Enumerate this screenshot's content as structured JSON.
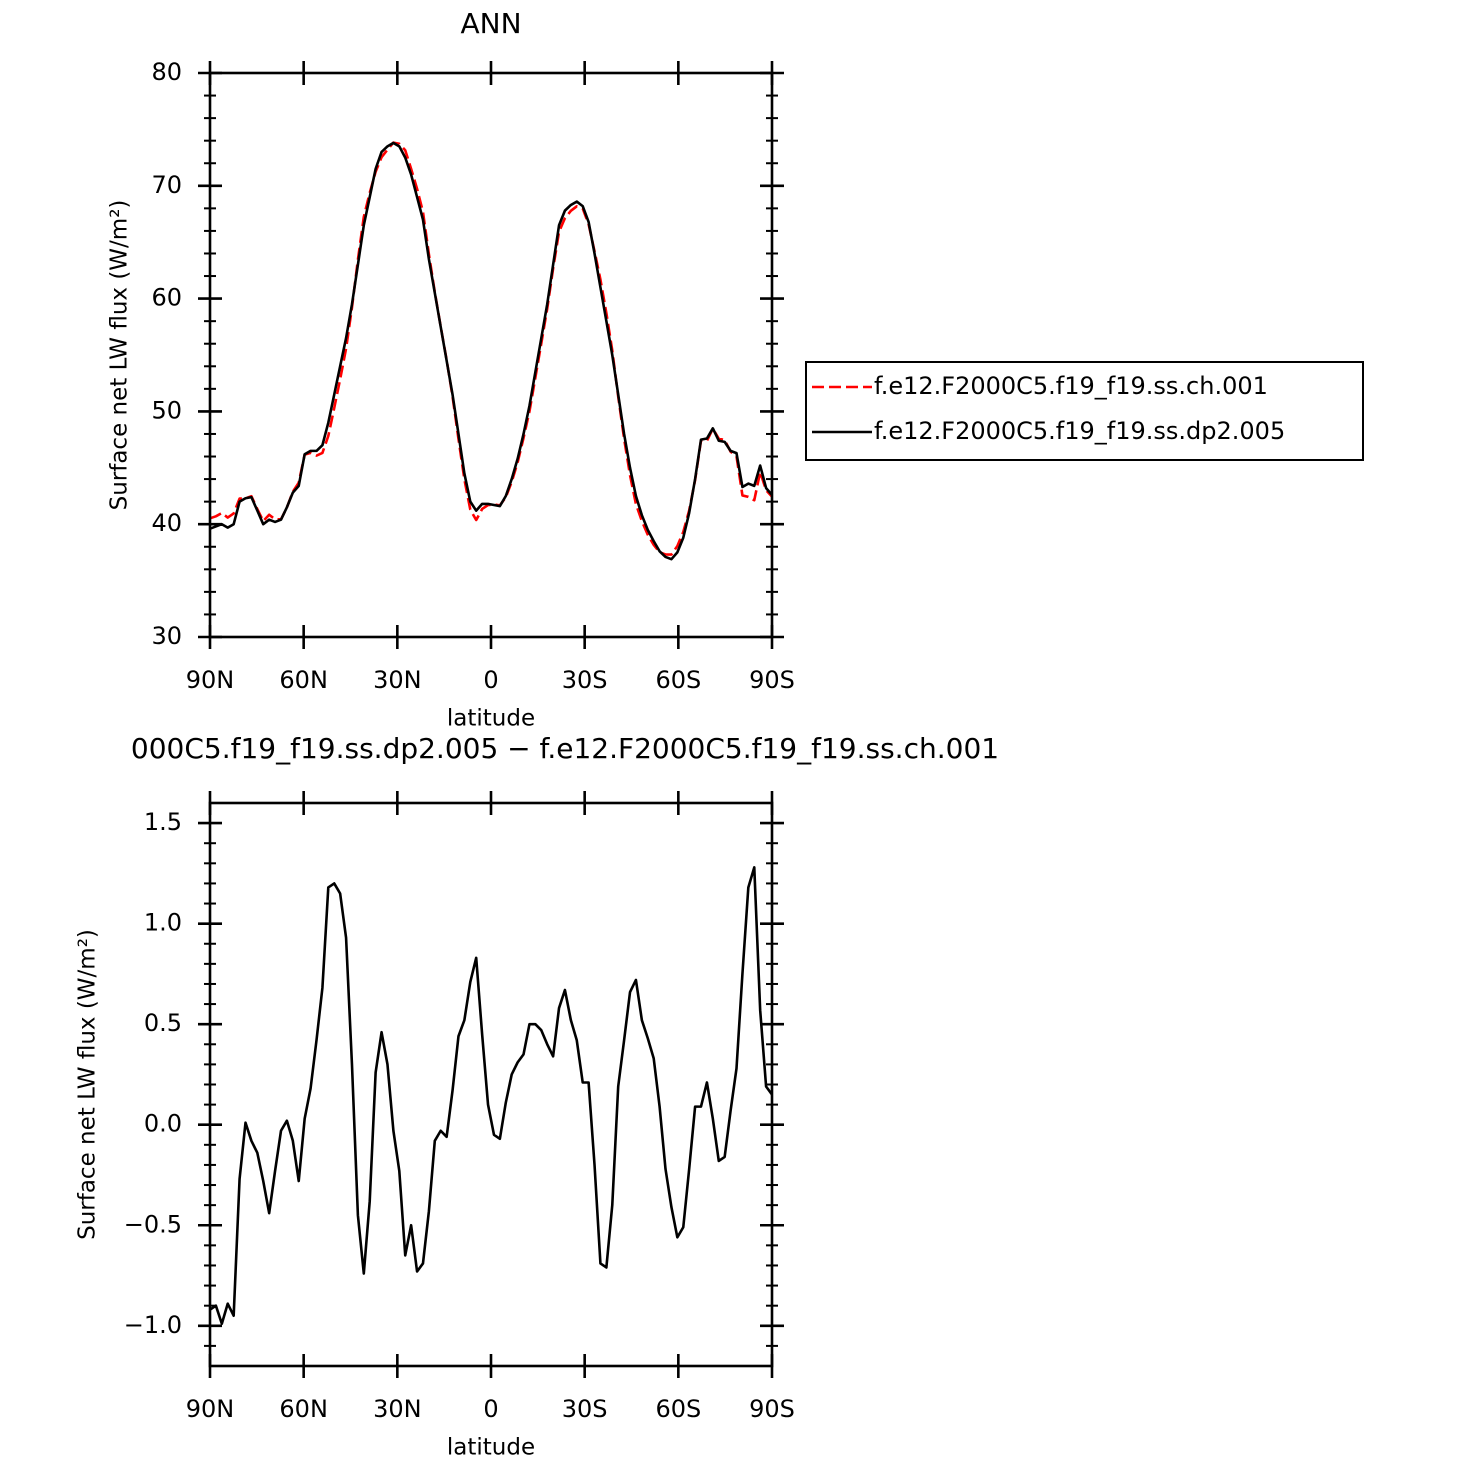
{
  "chart_data": [
    {
      "type": "line",
      "title": "ANN",
      "xlabel": "latitude",
      "ylabel": "Surface net LW flux (W/m²)",
      "x": [
        90,
        88.11,
        86.21,
        84.32,
        82.42,
        80.53,
        78.63,
        76.74,
        74.84,
        72.95,
        71.05,
        69.16,
        67.26,
        65.37,
        63.47,
        61.58,
        59.68,
        57.79,
        55.89,
        54,
        52.11,
        50.21,
        48.32,
        46.42,
        44.53,
        42.63,
        40.74,
        38.84,
        36.95,
        35.05,
        33.16,
        31.26,
        29.37,
        27.47,
        25.58,
        23.68,
        21.79,
        19.89,
        18,
        16.11,
        14.21,
        12.32,
        10.42,
        8.53,
        6.63,
        4.74,
        2.84,
        0.95,
        -0.95,
        -2.84,
        -4.74,
        -6.63,
        -8.53,
        -10.42,
        -12.32,
        -14.21,
        -16.11,
        -18,
        -19.89,
        -21.79,
        -23.68,
        -25.58,
        -27.47,
        -29.37,
        -31.26,
        -33.16,
        -35.05,
        -36.95,
        -38.84,
        -40.74,
        -42.63,
        -44.53,
        -46.42,
        -48.32,
        -50.21,
        -52.11,
        -54,
        -55.89,
        -57.79,
        -59.68,
        -61.58,
        -63.47,
        -65.37,
        -67.26,
        -69.16,
        -71.05,
        -72.95,
        -74.84,
        -76.74,
        -78.63,
        -80.53,
        -82.42,
        -84.32,
        -86.21,
        -88.11,
        -90
      ],
      "series": [
        {
          "name": "f.e12.F2000C5.f19_f19.ss.ch.001",
          "color": "#ff0000",
          "line_style": "dashed",
          "values": [
            40.52,
            40.7,
            40.99,
            40.59,
            40.95,
            42.27,
            42.29,
            42.48,
            41.34,
            40.28,
            40.84,
            40.43,
            40.43,
            41.48,
            42.88,
            43.68,
            46.17,
            46.32,
            46.08,
            46.32,
            47.82,
            50.3,
            52.85,
            55.57,
            59.2,
            63.45,
            67.24,
            69.38,
            71.24,
            72.54,
            73.2,
            73.83,
            73.73,
            73.15,
            71.5,
            69.73,
            67.69,
            63.93,
            60.58,
            57.53,
            54.56,
            51.33,
            47.56,
            43.98,
            41.29,
            40.37,
            41.35,
            41.7,
            41.75,
            41.67,
            42.39,
            43.75,
            45.49,
            47.65,
            50,
            53,
            56.03,
            59.1,
            62.66,
            65.92,
            67.13,
            67.78,
            68.18,
            67.99,
            66.59,
            64.2,
            61.69,
            58.71,
            55.4,
            51.31,
            47.58,
            44.34,
            41.78,
            40.28,
            39.07,
            38.17,
            37.51,
            37.32,
            37.31,
            38.06,
            39.31,
            41.22,
            43.91,
            47.41,
            47.39,
            48.47,
            47.58,
            47.46,
            46.43,
            46.02,
            42.55,
            42.42,
            42.12,
            44.63,
            43.01,
            42.45
          ]
        },
        {
          "name": "f.e12.F2000C5.f19_f19.ss.dp2.005",
          "color": "#000000",
          "line_style": "solid",
          "values": [
            39.6,
            39.8,
            40,
            39.7,
            40,
            42,
            42.3,
            42.4,
            41.2,
            40,
            40.4,
            40.2,
            40.4,
            41.5,
            42.8,
            43.4,
            46.2,
            46.5,
            46.5,
            47,
            49,
            51.5,
            54,
            56.5,
            59.5,
            63,
            66.5,
            69,
            71.5,
            73,
            73.5,
            73.8,
            73.5,
            72.5,
            71,
            69,
            67,
            63.5,
            60.5,
            57.5,
            54.5,
            51.5,
            48,
            44.5,
            42,
            41.2,
            41.8,
            41.8,
            41.7,
            41.6,
            42.5,
            44,
            45.8,
            48,
            50.5,
            53.5,
            56.5,
            59.5,
            63,
            66.5,
            67.8,
            68.3,
            68.6,
            68.2,
            66.8,
            64,
            61,
            58,
            55,
            51.5,
            48,
            45,
            42.5,
            40.8,
            39.5,
            38.5,
            37.6,
            37.1,
            36.9,
            37.5,
            38.8,
            41,
            44,
            47.5,
            47.6,
            48.5,
            47.4,
            47.3,
            46.5,
            46.3,
            43.3,
            43.6,
            43.4,
            45.2,
            43.2,
            42.6
          ]
        }
      ],
      "xlim": [
        90,
        -90
      ],
      "xticks": [
        {
          "value": 90,
          "label": "90N"
        },
        {
          "value": 60,
          "label": "60N"
        },
        {
          "value": 30,
          "label": "30N"
        },
        0,
        {
          "value": -30,
          "label": "30S"
        },
        {
          "value": -60,
          "label": "60S"
        },
        {
          "value": -90,
          "label": "90S"
        }
      ],
      "ylim": [
        30,
        80
      ],
      "yticks": [
        30,
        40,
        50,
        60,
        70,
        80
      ],
      "yminorticks": [
        32,
        34,
        36,
        38,
        42,
        44,
        46,
        48,
        52,
        54,
        56,
        58,
        62,
        64,
        66,
        68,
        72,
        74,
        76,
        78
      ],
      "grid": false,
      "legend": "right"
    },
    {
      "type": "line",
      "title": "000C5.f19_f19.ss.dp2.005 − f.e12.F2000C5.f19_f19.ss.ch.001",
      "xlabel": "latitude",
      "ylabel": "Surface net LW flux (W/m²)",
      "x": [
        90,
        88.11,
        86.21,
        84.32,
        82.42,
        80.53,
        78.63,
        76.74,
        74.84,
        72.95,
        71.05,
        69.16,
        67.26,
        65.37,
        63.47,
        61.58,
        59.68,
        57.79,
        55.89,
        54,
        52.11,
        50.21,
        48.32,
        46.42,
        44.53,
        42.63,
        40.74,
        38.84,
        36.95,
        35.05,
        33.16,
        31.26,
        29.37,
        27.47,
        25.58,
        23.68,
        21.79,
        19.89,
        18,
        16.11,
        14.21,
        12.32,
        10.42,
        8.53,
        6.63,
        4.74,
        2.84,
        0.95,
        -0.95,
        -2.84,
        -4.74,
        -6.63,
        -8.53,
        -10.42,
        -12.32,
        -14.21,
        -16.11,
        -18,
        -19.89,
        -21.79,
        -23.68,
        -25.58,
        -27.47,
        -29.37,
        -31.26,
        -33.16,
        -35.05,
        -36.95,
        -38.84,
        -40.74,
        -42.63,
        -44.53,
        -46.42,
        -48.32,
        -50.21,
        -52.11,
        -54,
        -55.89,
        -57.79,
        -59.68,
        -61.58,
        -63.47,
        -65.37,
        -67.26,
        -69.16,
        -71.05,
        -72.95,
        -74.84,
        -76.74,
        -78.63,
        -80.53,
        -82.42,
        -84.32,
        -86.21,
        -88.11,
        -90
      ],
      "color": "#000000",
      "values": [
        -0.92,
        -0.9,
        -0.99,
        -0.89,
        -0.95,
        -0.27,
        0.01,
        -0.08,
        -0.14,
        -0.28,
        -0.44,
        -0.23,
        -0.03,
        0.02,
        -0.08,
        -0.28,
        0.03,
        0.18,
        0.42,
        0.68,
        1.18,
        1.2,
        1.15,
        0.93,
        0.3,
        -0.45,
        -0.74,
        -0.38,
        0.26,
        0.46,
        0.3,
        -0.03,
        -0.23,
        -0.65,
        -0.5,
        -0.73,
        -0.69,
        -0.43,
        -0.08,
        -0.03,
        -0.06,
        0.17,
        0.44,
        0.52,
        0.71,
        0.83,
        0.45,
        0.1,
        -0.05,
        -0.07,
        0.11,
        0.25,
        0.31,
        0.35,
        0.5,
        0.5,
        0.47,
        0.4,
        0.34,
        0.58,
        0.67,
        0.52,
        0.42,
        0.21,
        0.21,
        -0.2,
        -0.69,
        -0.71,
        -0.4,
        0.19,
        0.42,
        0.66,
        0.72,
        0.52,
        0.43,
        0.33,
        0.09,
        -0.22,
        -0.41,
        -0.56,
        -0.51,
        -0.22,
        0.09,
        0.09,
        0.21,
        0.03,
        -0.18,
        -0.16,
        0.07,
        0.28,
        0.75,
        1.18,
        1.28,
        0.57,
        0.19,
        0.15
      ],
      "xlim": [
        90,
        -90
      ],
      "xticks": [
        {
          "value": 90,
          "label": "90N"
        },
        {
          "value": 60,
          "label": "60N"
        },
        {
          "value": 30,
          "label": "30N"
        },
        0,
        {
          "value": -30,
          "label": "30S"
        },
        {
          "value": -60,
          "label": "60S"
        },
        {
          "value": -90,
          "label": "90S"
        }
      ],
      "ylim": [
        -1.2,
        1.6
      ],
      "yticks": [
        {
          "value": -1,
          "label": "−1.0"
        },
        {
          "value": -0.5,
          "label": "−0.5"
        },
        {
          "value": 0,
          "label": "0.0"
        },
        0.5,
        {
          "value": 1,
          "label": "1.0"
        },
        1.5
      ],
      "yminorticks": [
        -1.1,
        -0.9,
        -0.8,
        -0.7,
        -0.6,
        -0.4,
        -0.3,
        -0.2,
        -0.1,
        0.1,
        0.2,
        0.3,
        0.4,
        0.6,
        0.7,
        0.8,
        0.9,
        1.1,
        1.2,
        1.3,
        1.4
      ],
      "grid": false
    }
  ]
}
